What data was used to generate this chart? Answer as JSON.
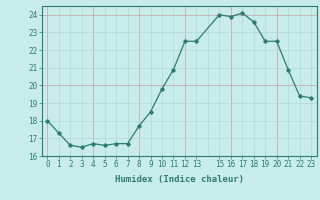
{
  "x": [
    0,
    1,
    2,
    3,
    4,
    5,
    6,
    7,
    8,
    9,
    10,
    11,
    12,
    13,
    15,
    16,
    17,
    18,
    19,
    20,
    21,
    22,
    23
  ],
  "y": [
    18.0,
    17.3,
    16.6,
    16.5,
    16.7,
    16.6,
    16.7,
    16.7,
    17.7,
    18.5,
    19.8,
    20.9,
    22.5,
    22.5,
    24.0,
    23.9,
    24.1,
    23.6,
    22.5,
    22.5,
    20.9,
    19.4,
    19.3
  ],
  "line_color": "#2d7d6e",
  "marker": "D",
  "marker_size": 1.8,
  "bg_color": "#c8ecea",
  "grid_color_major": "#b0d8d4",
  "grid_color_minor": "#e8f8f6",
  "axis_color": "#2d7d6e",
  "xlabel": "Humidex (Indice chaleur)",
  "xlim": [
    -0.5,
    23.5
  ],
  "ylim": [
    16,
    24.5
  ],
  "yticks": [
    16,
    17,
    18,
    19,
    20,
    21,
    22,
    23,
    24
  ],
  "xticks": [
    0,
    1,
    2,
    3,
    4,
    5,
    6,
    7,
    8,
    9,
    10,
    11,
    12,
    13,
    15,
    16,
    17,
    18,
    19,
    20,
    21,
    22,
    23
  ],
  "tick_fontsize": 5.5,
  "label_fontsize": 6.5
}
